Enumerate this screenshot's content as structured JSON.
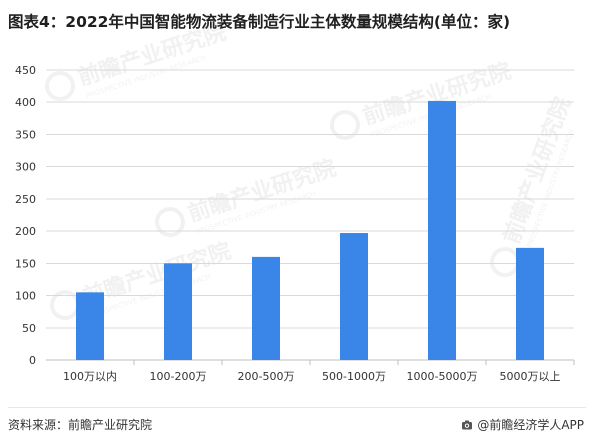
{
  "title": "图表4：2022年中国智能物流装备制造行业主体数量规模结构(单位：家)",
  "source": "资料来源：前瞻产业研究院",
  "credit": "@前瞻经济学人APP",
  "watermark": {
    "brand": "前瞻产业研究院",
    "sub": "PROSPECTIVE INDUSTRY RESEARCH"
  },
  "colors": {
    "bar": "#3a86e8",
    "grid": "#d9d9d9",
    "axis": "#bfbfbf",
    "tick_text": "#333333"
  },
  "chart_data": {
    "type": "bar",
    "categories": [
      "100万以内",
      "100-200万",
      "200-500万",
      "500-1000万",
      "1000-5000万",
      "5000万以上"
    ],
    "values": [
      105,
      150,
      160,
      197,
      402,
      174
    ],
    "ylim": [
      0,
      450
    ],
    "yticks": [
      0,
      50,
      100,
      150,
      200,
      250,
      300,
      350,
      400,
      450
    ],
    "xlabel": "",
    "ylabel": "",
    "grid": true,
    "legend": "none"
  }
}
